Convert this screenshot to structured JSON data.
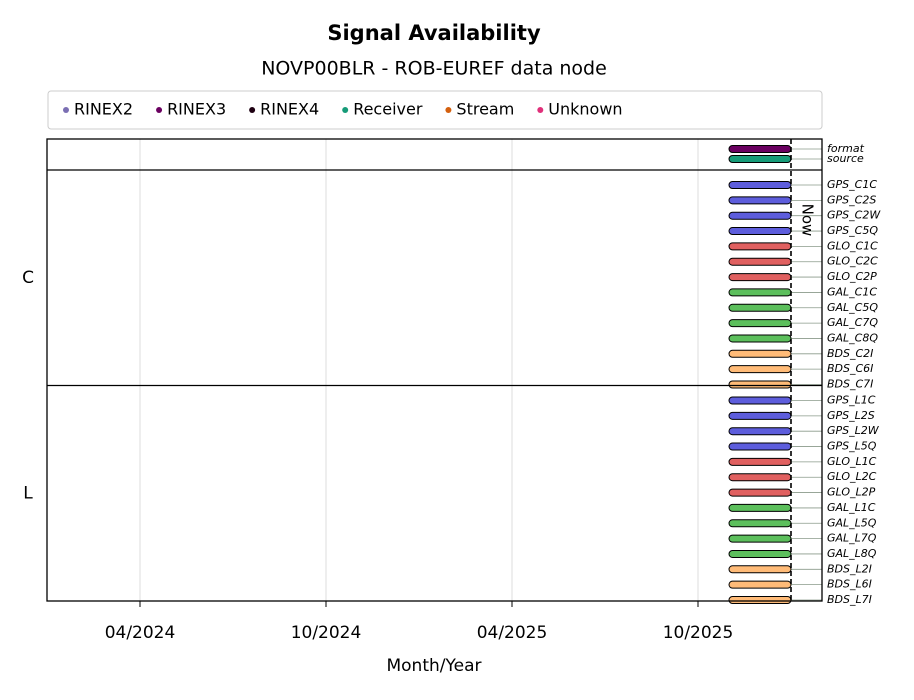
{
  "chart_data": {
    "type": "timeline",
    "title": "Signal Availability",
    "subtitle": "NOVP00BLR - ROB-EUREF data node",
    "x_label": "Month/Year",
    "xlim": [
      "01/2024",
      "02/2026"
    ],
    "xticks": [
      "04/2024",
      "10/2024",
      "04/2025",
      "10/2025"
    ],
    "grid": true,
    "now": "01/2026",
    "now_label": "Now",
    "legend": [
      {
        "name": "RINEX2",
        "color": "#7b6fb3"
      },
      {
        "name": "RINEX3",
        "color": "#6a0060"
      },
      {
        "name": "RINEX4",
        "color": "#1e0012"
      },
      {
        "name": "Receiver",
        "color": "#169b78"
      },
      {
        "name": "Stream",
        "color": "#d4600e"
      },
      {
        "name": "Unknown",
        "color": "#e0307a"
      }
    ],
    "groups": [
      {
        "label": null,
        "rows": [
          {
            "name": "format",
            "color": "#6a0060",
            "start": "11/2025",
            "end": "01/2026"
          },
          {
            "name": "source",
            "color": "#169b78",
            "start": "11/2025",
            "end": "01/2026"
          }
        ]
      },
      {
        "label": "C",
        "rows": [
          {
            "name": "GPS_C1C",
            "color": "#5d5ddc",
            "start": "11/2025",
            "end": "01/2026"
          },
          {
            "name": "GPS_C2S",
            "color": "#5d5ddc",
            "start": "11/2025",
            "end": "01/2026"
          },
          {
            "name": "GPS_C2W",
            "color": "#5d5ddc",
            "start": "11/2025",
            "end": "01/2026"
          },
          {
            "name": "GPS_C5Q",
            "color": "#5d5ddc",
            "start": "11/2025",
            "end": "01/2026"
          },
          {
            "name": "GLO_C1C",
            "color": "#e06060",
            "start": "11/2025",
            "end": "01/2026"
          },
          {
            "name": "GLO_C2C",
            "color": "#e06060",
            "start": "11/2025",
            "end": "01/2026"
          },
          {
            "name": "GLO_C2P",
            "color": "#e06060",
            "start": "11/2025",
            "end": "01/2026"
          },
          {
            "name": "GAL_C1C",
            "color": "#5cbf5c",
            "start": "11/2025",
            "end": "01/2026"
          },
          {
            "name": "GAL_C5Q",
            "color": "#5cbf5c",
            "start": "11/2025",
            "end": "01/2026"
          },
          {
            "name": "GAL_C7Q",
            "color": "#5cbf5c",
            "start": "11/2025",
            "end": "01/2026"
          },
          {
            "name": "GAL_C8Q",
            "color": "#5cbf5c",
            "start": "11/2025",
            "end": "01/2026"
          },
          {
            "name": "BDS_C2I",
            "color": "#ffbb78",
            "start": "11/2025",
            "end": "01/2026"
          },
          {
            "name": "BDS_C6I",
            "color": "#ffbb78",
            "start": "11/2025",
            "end": "01/2026"
          },
          {
            "name": "BDS_C7I",
            "color": "#ffbb78",
            "start": "11/2025",
            "end": "01/2026"
          }
        ]
      },
      {
        "label": "L",
        "rows": [
          {
            "name": "GPS_L1C",
            "color": "#5d5ddc",
            "start": "11/2025",
            "end": "01/2026"
          },
          {
            "name": "GPS_L2S",
            "color": "#5d5ddc",
            "start": "11/2025",
            "end": "01/2026"
          },
          {
            "name": "GPS_L2W",
            "color": "#5d5ddc",
            "start": "11/2025",
            "end": "01/2026"
          },
          {
            "name": "GPS_L5Q",
            "color": "#5d5ddc",
            "start": "11/2025",
            "end": "01/2026"
          },
          {
            "name": "GLO_L1C",
            "color": "#e06060",
            "start": "11/2025",
            "end": "01/2026"
          },
          {
            "name": "GLO_L2C",
            "color": "#e06060",
            "start": "11/2025",
            "end": "01/2026"
          },
          {
            "name": "GLO_L2P",
            "color": "#e06060",
            "start": "11/2025",
            "end": "01/2026"
          },
          {
            "name": "GAL_L1C",
            "color": "#5cbf5c",
            "start": "11/2025",
            "end": "01/2026"
          },
          {
            "name": "GAL_L5Q",
            "color": "#5cbf5c",
            "start": "11/2025",
            "end": "01/2026"
          },
          {
            "name": "GAL_L7Q",
            "color": "#5cbf5c",
            "start": "11/2025",
            "end": "01/2026"
          },
          {
            "name": "GAL_L8Q",
            "color": "#5cbf5c",
            "start": "11/2025",
            "end": "01/2026"
          },
          {
            "name": "BDS_L2I",
            "color": "#ffbb78",
            "start": "11/2025",
            "end": "01/2026"
          },
          {
            "name": "BDS_L6I",
            "color": "#ffbb78",
            "start": "11/2025",
            "end": "01/2026"
          },
          {
            "name": "BDS_L7I",
            "color": "#ffbb78",
            "start": "11/2025",
            "end": "01/2026"
          }
        ]
      }
    ]
  }
}
